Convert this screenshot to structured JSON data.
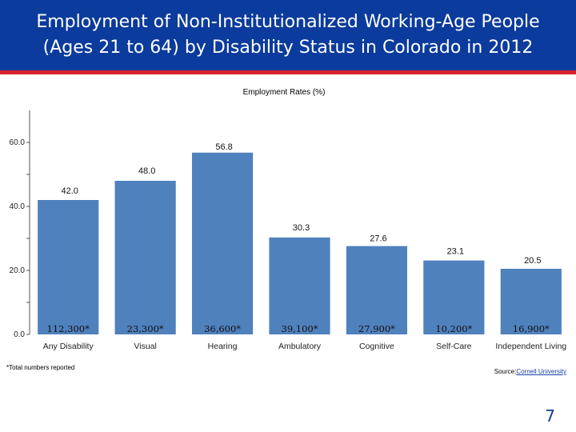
{
  "slide": {
    "title_line1": "Employment of Non-Institutionalized Working-Age People",
    "title_line2": "(Ages 21 to 64) by Disability Status in Colorado in 2012",
    "footnote": "*Total numbers reported",
    "source_label": "Source:",
    "source_link": "Cornell University",
    "page_number": "7"
  },
  "colors": {
    "header_bg": "#0b3b9c",
    "accent_line": "#d8212e",
    "bar": "#4f81bd"
  },
  "chart_data": {
    "type": "bar",
    "title": "Employment Rates (%)",
    "categories": [
      "Any Disability",
      "Visual",
      "Hearing",
      "Ambulatory",
      "Cognitive",
      "Self-Care",
      "Independent Living"
    ],
    "values": [
      42.0,
      48.0,
      56.8,
      30.3,
      27.6,
      23.1,
      20.5
    ],
    "value_labels": [
      "42.0",
      "48.0",
      "56.8",
      "30.3",
      "27.6",
      "23.1",
      "20.5"
    ],
    "counts": [
      "112,300*",
      "23,300*",
      "36,600*",
      "39,100*",
      "27,900*",
      "10,200*",
      "16,900*"
    ],
    "yticks": [
      0,
      20,
      40,
      60
    ],
    "ytick_labels": [
      "0.0",
      "20.0",
      "40.0",
      "60.0"
    ],
    "ylim": [
      0,
      60
    ],
    "grid": false,
    "legend": "none"
  }
}
